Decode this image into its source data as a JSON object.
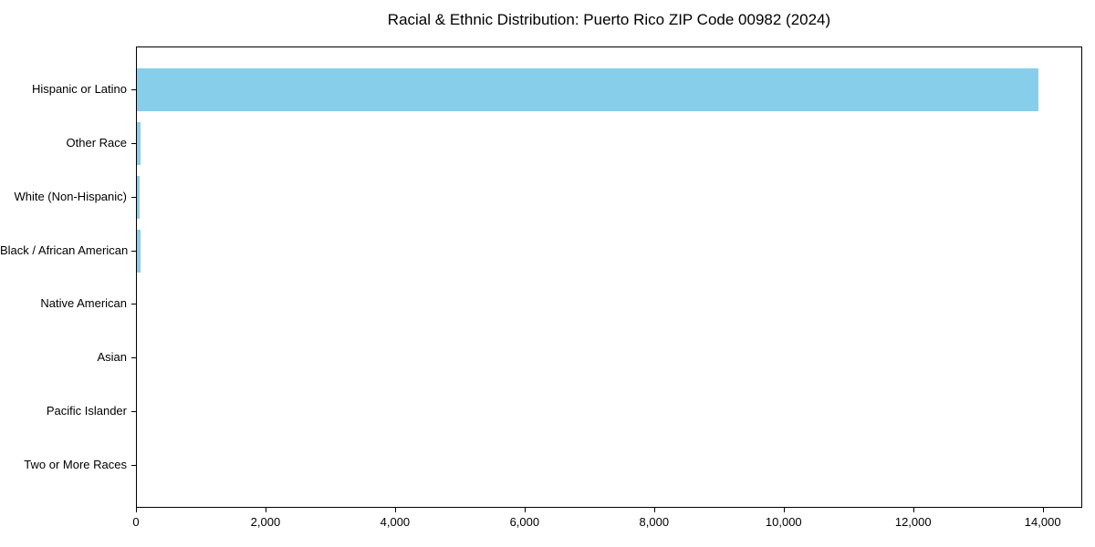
{
  "chart_data": {
    "type": "bar",
    "orientation": "horizontal",
    "title": "Racial & Ethnic Distribution: Puerto Rico ZIP Code 00982 (2024)",
    "categories": [
      "Hispanic or Latino",
      "Other Race",
      "White (Non-Hispanic)",
      "Black / African American",
      "Native American",
      "Asian",
      "Pacific Islander",
      "Two or More Races"
    ],
    "values": [
      13915,
      63,
      42,
      56,
      0,
      0,
      0,
      0
    ],
    "xlabel": "",
    "ylabel": "",
    "xlim": [
      0,
      14610
    ],
    "x_ticks": [
      0,
      2000,
      4000,
      6000,
      8000,
      10000,
      12000,
      14000
    ],
    "x_tick_labels": [
      "0",
      "2,000",
      "4,000",
      "6,000",
      "8,000",
      "10,000",
      "12,000",
      "14,000"
    ],
    "bar_color": "#87CEEB",
    "grid": false,
    "legend": null,
    "plot_background": "#FFFFFF",
    "spine_color": "#000000"
  }
}
